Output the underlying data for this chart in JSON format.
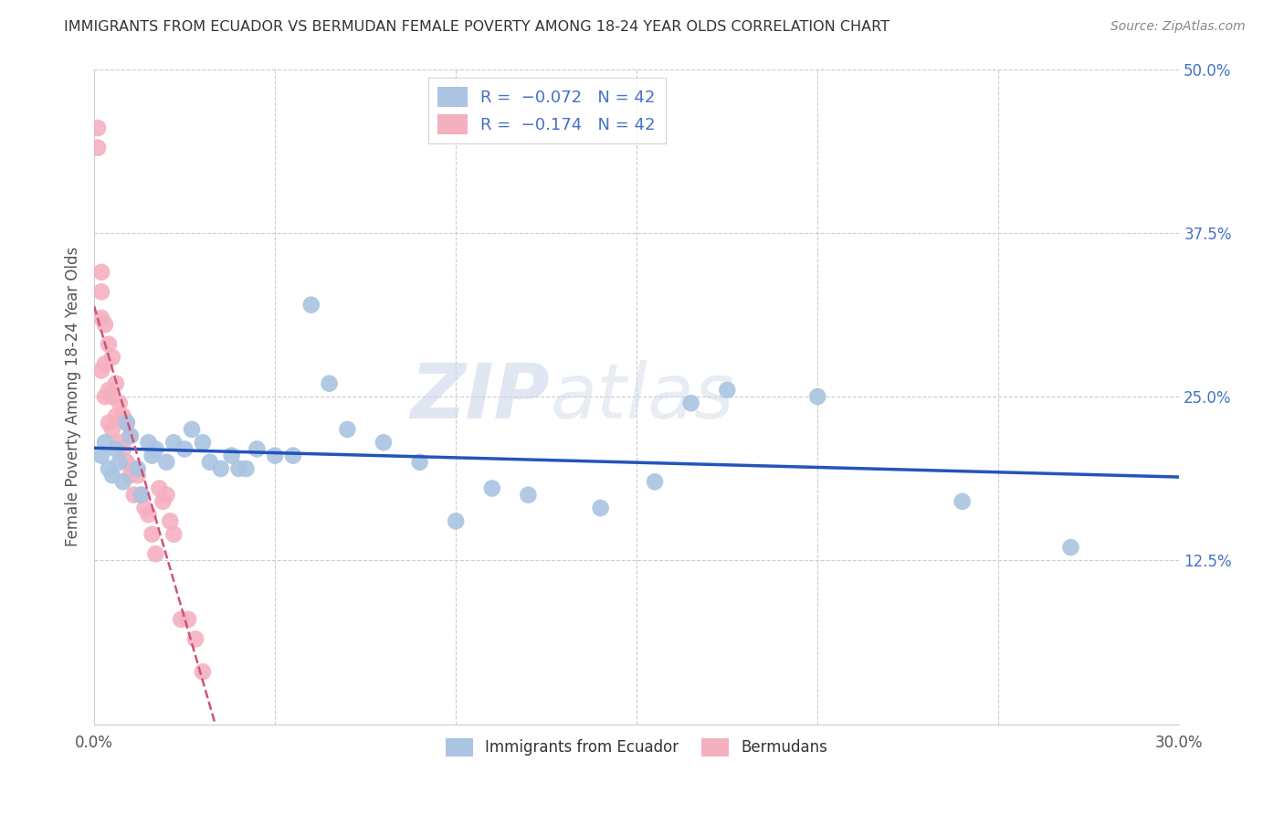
{
  "title": "IMMIGRANTS FROM ECUADOR VS BERMUDAN FEMALE POVERTY AMONG 18-24 YEAR OLDS CORRELATION CHART",
  "source": "Source: ZipAtlas.com",
  "ylabel": "Female Poverty Among 18-24 Year Olds",
  "xlim": [
    0.0,
    0.3
  ],
  "ylim": [
    0.0,
    0.5
  ],
  "R_ecuador": -0.072,
  "N_ecuador": 42,
  "R_bermudan": -0.174,
  "N_bermudan": 42,
  "color_ecuador": "#aac4e2",
  "color_bermudan": "#f5b0c0",
  "line_color_ecuador": "#2255bb",
  "line_color_bermudan": "#cc5577",
  "watermark_zip": "ZIP",
  "watermark_atlas": "atlas",
  "ecuador_x": [
    0.002,
    0.003,
    0.004,
    0.005,
    0.006,
    0.007,
    0.008,
    0.009,
    0.01,
    0.012,
    0.013,
    0.015,
    0.016,
    0.017,
    0.02,
    0.022,
    0.025,
    0.027,
    0.03,
    0.032,
    0.035,
    0.038,
    0.04,
    0.042,
    0.045,
    0.05,
    0.055,
    0.06,
    0.065,
    0.07,
    0.08,
    0.09,
    0.1,
    0.11,
    0.12,
    0.14,
    0.155,
    0.165,
    0.175,
    0.2,
    0.24,
    0.27
  ],
  "ecuador_y": [
    0.205,
    0.215,
    0.195,
    0.19,
    0.21,
    0.2,
    0.185,
    0.23,
    0.22,
    0.195,
    0.175,
    0.215,
    0.205,
    0.21,
    0.2,
    0.215,
    0.21,
    0.225,
    0.215,
    0.2,
    0.195,
    0.205,
    0.195,
    0.195,
    0.21,
    0.205,
    0.205,
    0.32,
    0.26,
    0.225,
    0.215,
    0.2,
    0.155,
    0.18,
    0.175,
    0.165,
    0.185,
    0.245,
    0.255,
    0.25,
    0.17,
    0.135
  ],
  "bermudan_x": [
    0.001,
    0.001,
    0.002,
    0.002,
    0.002,
    0.002,
    0.003,
    0.003,
    0.003,
    0.004,
    0.004,
    0.004,
    0.005,
    0.005,
    0.005,
    0.006,
    0.006,
    0.007,
    0.007,
    0.008,
    0.008,
    0.009,
    0.009,
    0.01,
    0.01,
    0.011,
    0.011,
    0.012,
    0.013,
    0.014,
    0.015,
    0.016,
    0.017,
    0.018,
    0.019,
    0.02,
    0.021,
    0.022,
    0.024,
    0.026,
    0.028,
    0.03
  ],
  "bermudan_y": [
    0.455,
    0.44,
    0.345,
    0.33,
    0.31,
    0.27,
    0.305,
    0.275,
    0.25,
    0.29,
    0.255,
    0.23,
    0.28,
    0.25,
    0.225,
    0.26,
    0.235,
    0.245,
    0.215,
    0.235,
    0.21,
    0.23,
    0.2,
    0.22,
    0.19,
    0.195,
    0.175,
    0.19,
    0.175,
    0.165,
    0.16,
    0.145,
    0.13,
    0.18,
    0.17,
    0.175,
    0.155,
    0.145,
    0.08,
    0.08,
    0.065,
    0.04
  ]
}
